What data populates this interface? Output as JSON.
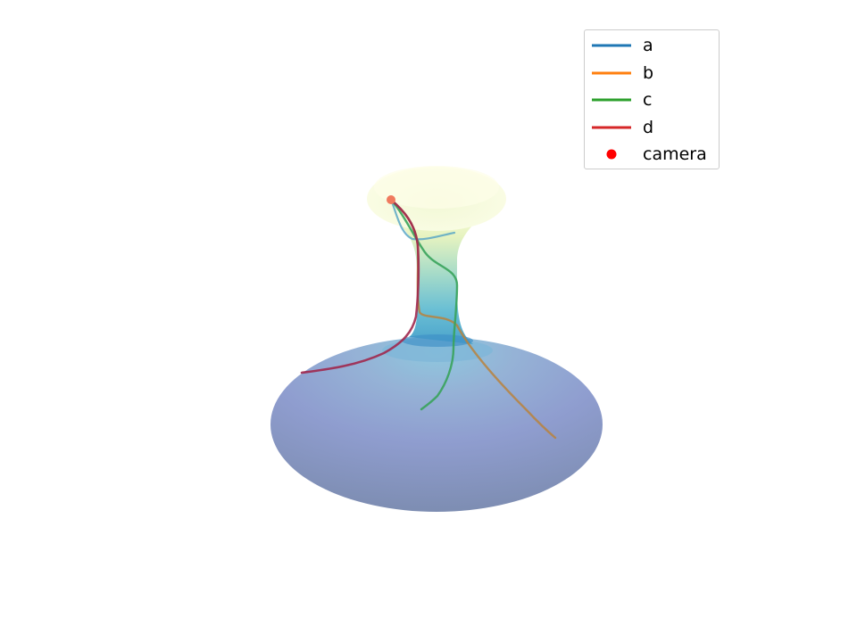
{
  "chart_data": {
    "type": "surface-3d",
    "surface": {
      "description_kind": "surface of revolution with trajectories",
      "colormap": [
        "#253494",
        "#2c7fb8",
        "#41b6c4",
        "#a1dab4",
        "#ffffcc"
      ],
      "alpha": 0.55
    },
    "series": [
      {
        "name": "a",
        "color": "#1f77b4",
        "kind": "line"
      },
      {
        "name": "b",
        "color": "#ff7f0e",
        "kind": "line"
      },
      {
        "name": "c",
        "color": "#2ca02c",
        "kind": "line"
      },
      {
        "name": "d",
        "color": "#d62728",
        "kind": "line"
      },
      {
        "name": "camera",
        "color": "#ff0000",
        "kind": "marker"
      }
    ],
    "legend_position": "top-right",
    "axes_visible": false,
    "grid": false
  }
}
